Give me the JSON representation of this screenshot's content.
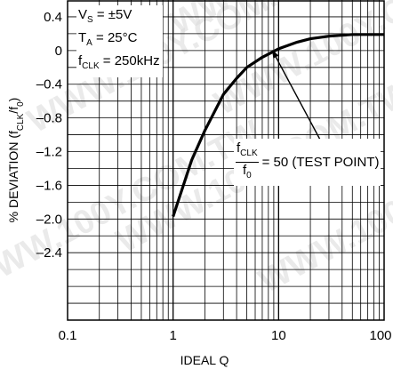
{
  "watermark": "WWW.100Y.COM.TW",
  "conditions": {
    "vs": "V",
    "vs_sub": "S",
    "vs_val": " = ±5V",
    "ta": "T",
    "ta_sub": "A",
    "ta_val": " = 25°C",
    "fclk": "f",
    "fclk_sub": "CLK",
    "fclk_val": " = 250kHz"
  },
  "annotation": {
    "num": "f",
    "num_sub": "CLK",
    "den": "f",
    "den_sub": "0",
    "text": "= 50 (TEST POINT)"
  },
  "chart_data": {
    "type": "line",
    "xlabel": "IDEAL Q",
    "ylabel": "% DEVIATION (fCLK/f0)",
    "xscale": "log",
    "xlim": [
      0.1,
      100
    ],
    "ylim": [
      -3.2,
      0.6
    ],
    "grid": true,
    "x_ticks": [
      "0.1",
      "1",
      "10",
      "100"
    ],
    "y_ticks": [
      "0.4",
      "0",
      "–0.4",
      "–0.8",
      "–1.2",
      "–1.6",
      "–2.0",
      "–2.4"
    ],
    "y_tick_values": [
      0.4,
      0,
      -0.4,
      -0.8,
      -1.2,
      -1.6,
      -2.0,
      -2.4
    ],
    "series": [
      {
        "x": [
          1,
          1.5,
          2,
          3,
          4,
          5,
          7,
          10,
          15,
          20,
          30,
          50,
          100
        ],
        "y": [
          -1.97,
          -1.3,
          -0.95,
          -0.52,
          -0.33,
          -0.2,
          -0.08,
          0.02,
          0.1,
          0.14,
          0.17,
          0.19,
          0.19
        ]
      }
    ]
  }
}
